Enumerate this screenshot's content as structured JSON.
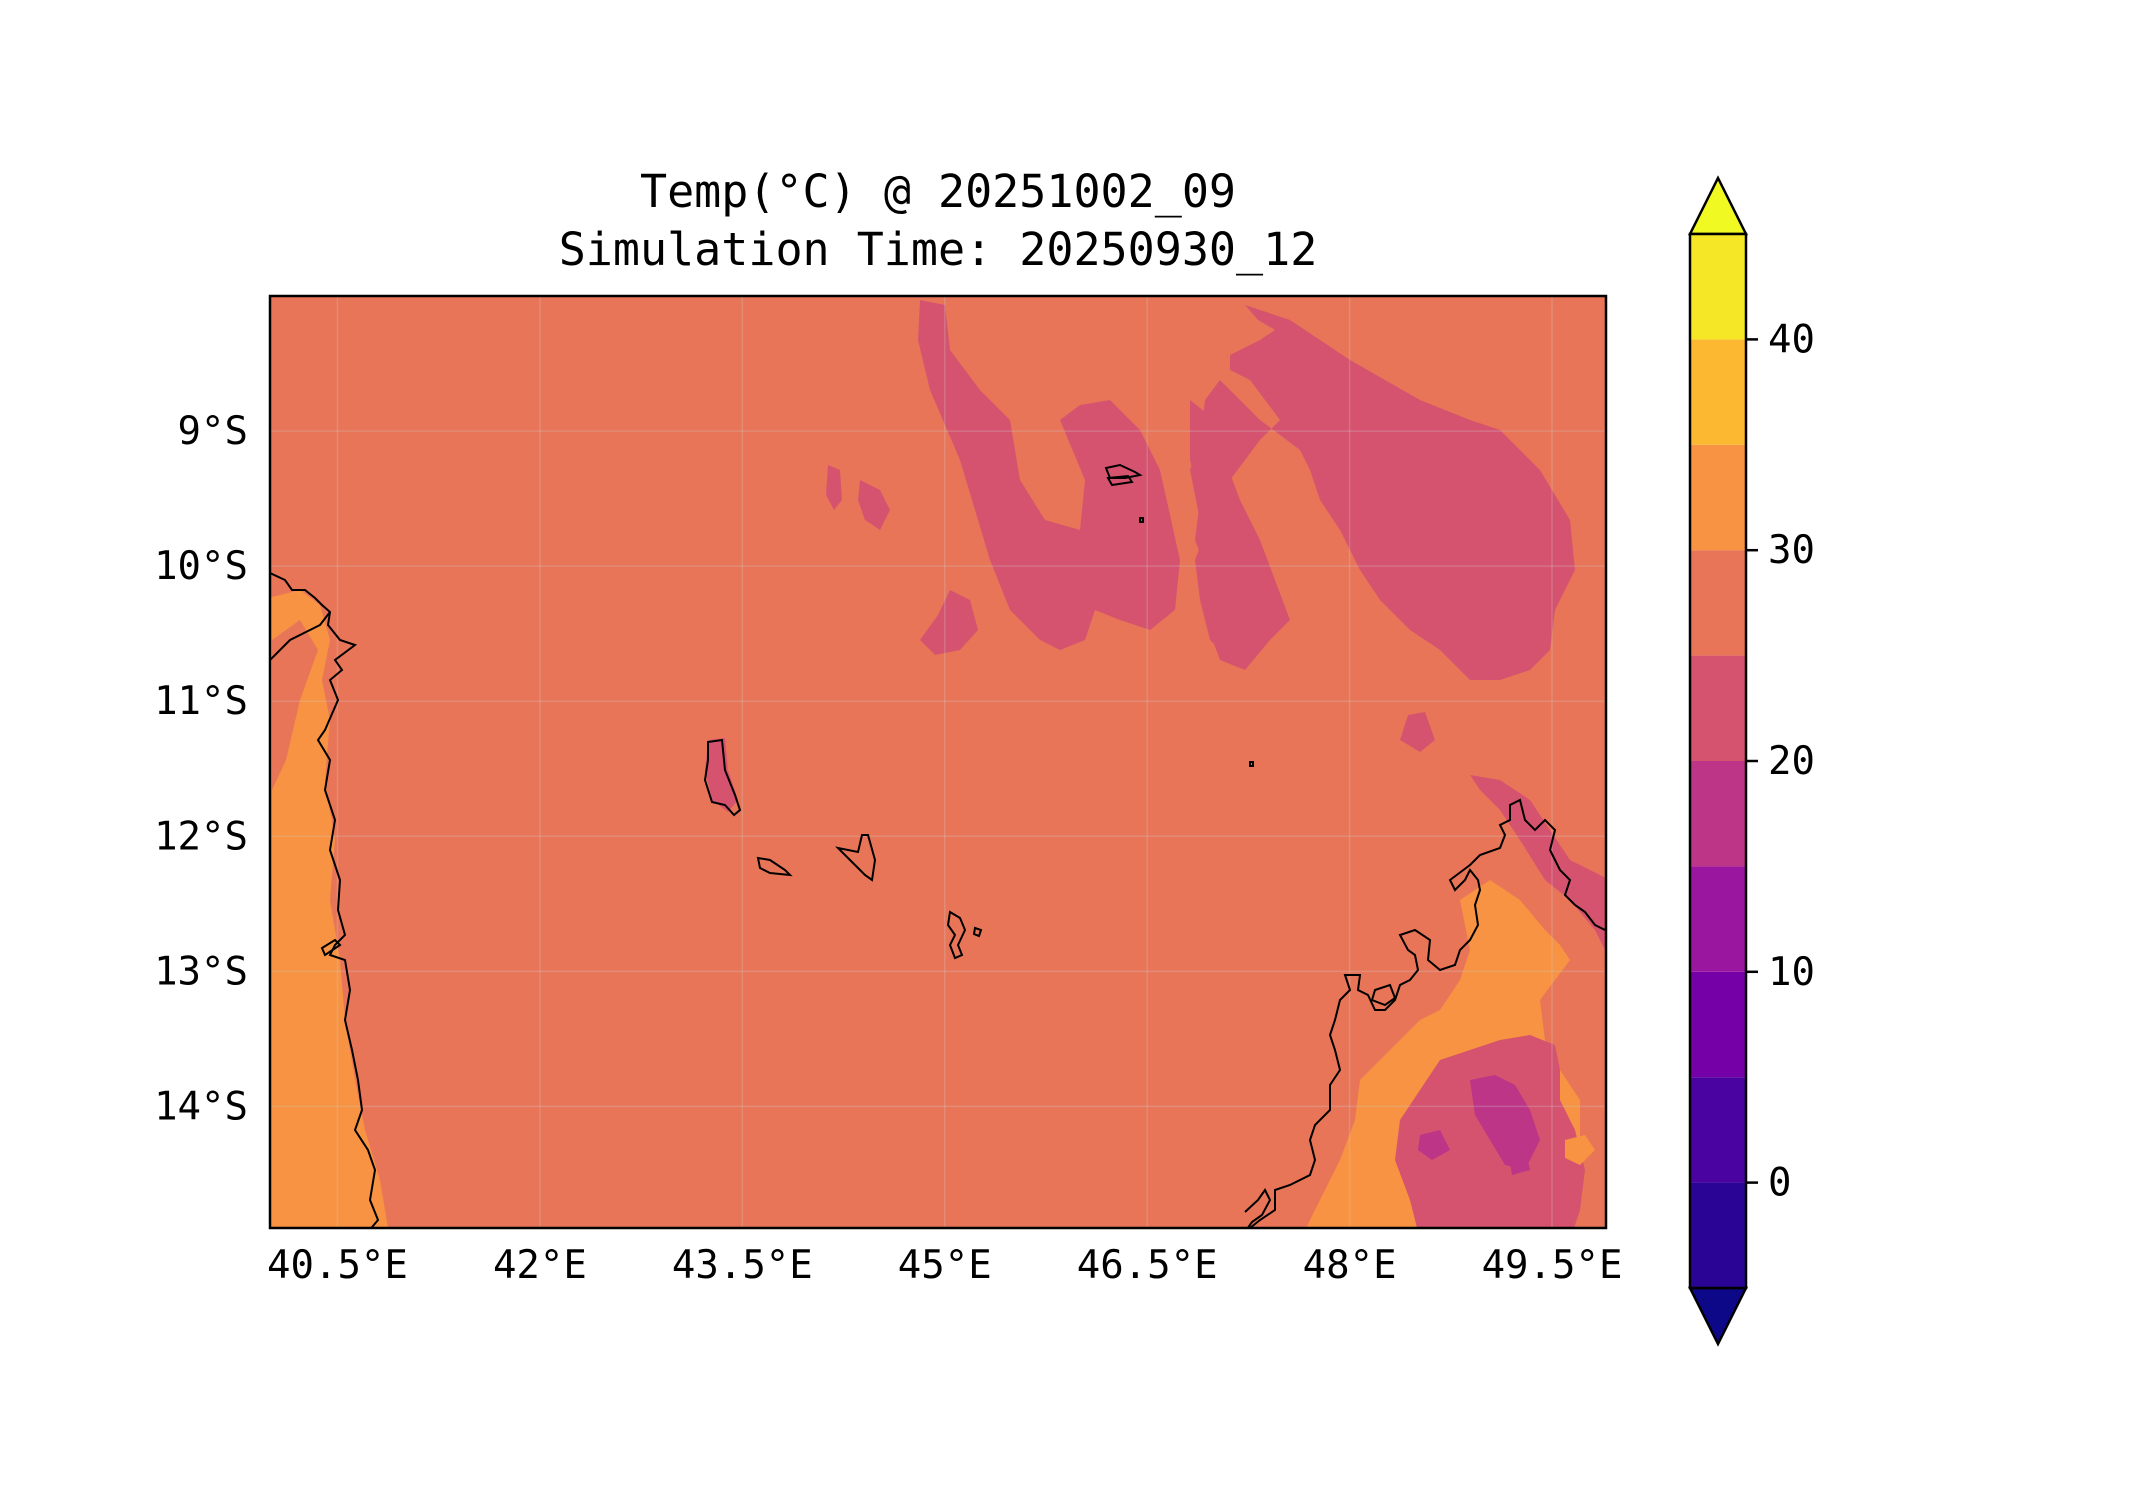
{
  "title": {
    "line1": "Temp(°C) @ 20251002_09",
    "line2": "Simulation Time: 20250930_12"
  },
  "map": {
    "lon_range": [
      40.0,
      49.9
    ],
    "lat_range": [
      -14.9,
      -8.0
    ],
    "x_ticks": [
      {
        "value": 40.5,
        "label": "40.5°E"
      },
      {
        "value": 42.0,
        "label": "42°E"
      },
      {
        "value": 43.5,
        "label": "43.5°E"
      },
      {
        "value": 45.0,
        "label": "45°E"
      },
      {
        "value": 46.5,
        "label": "46.5°E"
      },
      {
        "value": 48.0,
        "label": "48°E"
      },
      {
        "value": 49.5,
        "label": "49.5°E"
      }
    ],
    "y_ticks": [
      {
        "value": -9,
        "label": "9°S"
      },
      {
        "value": -10,
        "label": "10°S"
      },
      {
        "value": -11,
        "label": "11°S"
      },
      {
        "value": -12,
        "label": "12°S"
      },
      {
        "value": -13,
        "label": "13°S"
      },
      {
        "value": -14,
        "label": "14°S"
      }
    ],
    "background_color": "#e87558"
  },
  "colorbar": {
    "min": -5,
    "max": 45,
    "levels": [
      {
        "from": -5,
        "to": 0,
        "color": "#2a0595"
      },
      {
        "from": 0,
        "to": 5,
        "color": "#4a02a0"
      },
      {
        "from": 5,
        "to": 10,
        "color": "#7500a8"
      },
      {
        "from": 10,
        "to": 15,
        "color": "#9a169f"
      },
      {
        "from": 15,
        "to": 20,
        "color": "#bc3587"
      },
      {
        "from": 20,
        "to": 25,
        "color": "#d5536f"
      },
      {
        "from": 25,
        "to": 30,
        "color": "#e87558"
      },
      {
        "from": 30,
        "to": 35,
        "color": "#f79342"
      },
      {
        "from": 35,
        "to": 40,
        "color": "#fcb830"
      },
      {
        "from": 40,
        "to": 45,
        "color": "#f5e726"
      }
    ],
    "under_color": "#0d0887",
    "over_color": "#f0f921",
    "ticks": [
      {
        "value": 0,
        "label": "0"
      },
      {
        "value": 10,
        "label": "10"
      },
      {
        "value": 20,
        "label": "20"
      },
      {
        "value": 30,
        "label": "30"
      },
      {
        "value": 40,
        "label": "40"
      }
    ]
  }
}
